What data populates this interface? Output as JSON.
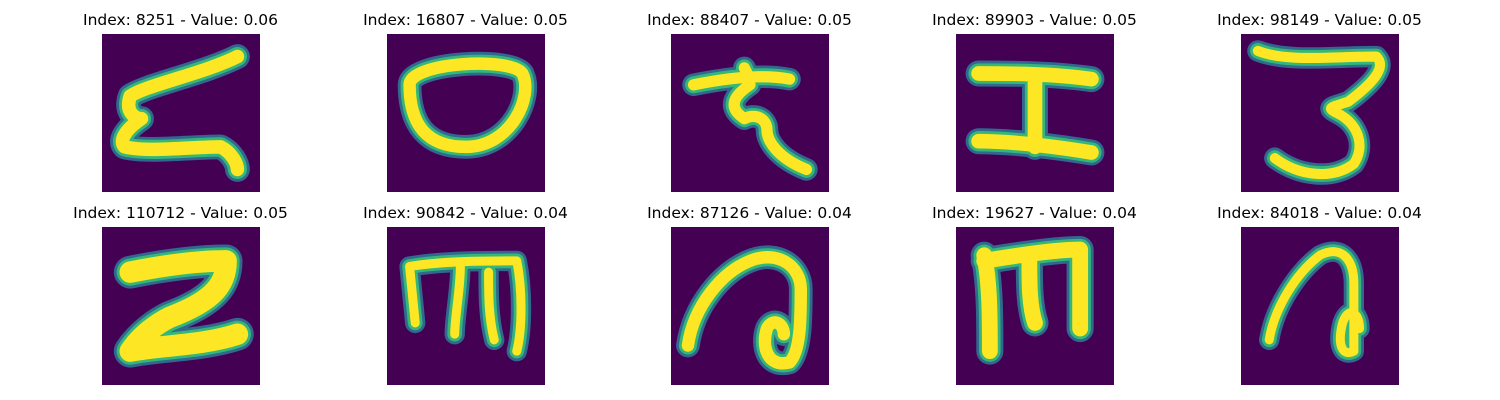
{
  "palette": {
    "background": "#440154",
    "stroke_core": "#fde725",
    "stroke_mid": "#35b779",
    "stroke_edge": "#31688e"
  },
  "panels": [
    {
      "title": "Index: 8251 - Value: 0.06",
      "glyph": "glyph-curly-z"
    },
    {
      "title": "Index: 16807 - Value: 0.05",
      "glyph": "glyph-oval"
    },
    {
      "title": "Index: 88407 - Value: 0.05",
      "glyph": "glyph-hook-char"
    },
    {
      "title": "Index: 89903 - Value: 0.05",
      "glyph": "glyph-i-beam"
    },
    {
      "title": "Index: 98149 - Value: 0.05",
      "glyph": "glyph-three"
    },
    {
      "title": "Index: 110712 - Value: 0.05",
      "glyph": "glyph-bold-z"
    },
    {
      "title": "Index: 90842 - Value: 0.04",
      "glyph": "glyph-m-shape"
    },
    {
      "title": "Index: 87126 - Value: 0.04",
      "glyph": "glyph-loop-a"
    },
    {
      "title": "Index: 19627 - Value: 0.04",
      "glyph": "glyph-m-bold"
    },
    {
      "title": "Index: 84018 - Value: 0.04",
      "glyph": "glyph-loop-n"
    }
  ]
}
